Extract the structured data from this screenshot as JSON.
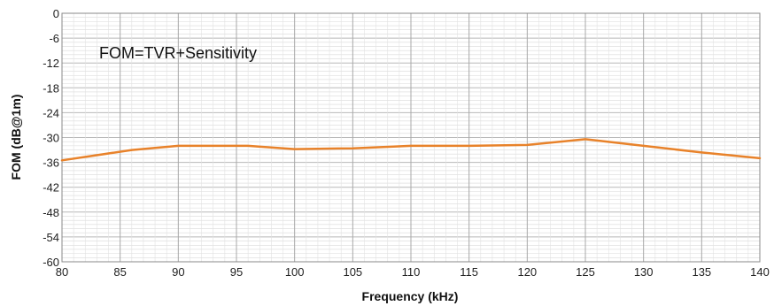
{
  "chart_data": {
    "type": "line",
    "xlabel": "Frequency (kHz)",
    "ylabel": "FOM (dB@1m)",
    "annotation": "FOM=TVR+Sensitivity",
    "xlim": [
      80,
      140
    ],
    "ylim": [
      -60,
      0
    ],
    "xticks": [
      80,
      85,
      90,
      95,
      100,
      105,
      110,
      115,
      120,
      125,
      130,
      135,
      140
    ],
    "yticks": [
      0,
      -6,
      -12,
      -18,
      -24,
      -30,
      -36,
      -42,
      -48,
      -54,
      -60
    ],
    "grid": true,
    "line_color": "#e8822a",
    "series": [
      {
        "x": [
          80,
          86,
          90,
          96,
          100,
          105,
          110,
          115,
          120,
          125,
          130,
          135,
          140
        ],
        "values": [
          -35.5,
          -33,
          -32,
          -32,
          -32.8,
          -32.6,
          -32,
          -32,
          -31.8,
          -30.4,
          -32,
          -33.6,
          -35
        ]
      }
    ]
  }
}
